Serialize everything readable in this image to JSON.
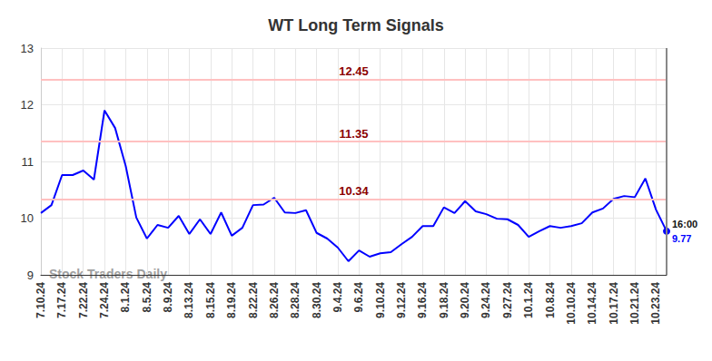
{
  "chart_data": {
    "type": "line",
    "title": "WT Long Term Signals",
    "categories": [
      "7.10.24",
      null,
      "7.17.24",
      null,
      "7.22.24",
      null,
      "7.24.24",
      null,
      "8.1.24",
      null,
      "8.5.24",
      null,
      "8.9.24",
      null,
      "8.13.24",
      null,
      "8.15.24",
      null,
      "8.19.24",
      null,
      "8.22.24",
      null,
      "8.26.24",
      null,
      "8.28.24",
      null,
      "8.30.24",
      null,
      "9.4.24",
      null,
      "9.6.24",
      null,
      "9.10.24",
      null,
      "9.12.24",
      null,
      "9.16.24",
      null,
      "9.18.24",
      null,
      "9.20.24",
      null,
      "9.24.24",
      null,
      "9.27.24",
      null,
      "10.1.24",
      null,
      "10.8.24",
      null,
      "10.10.24",
      null,
      "10.14.24",
      null,
      "10.17.24",
      null,
      "10.21.24",
      null,
      "10.23.24",
      null
    ],
    "values": [
      10.09,
      10.23,
      10.76,
      10.76,
      10.84,
      10.68,
      11.9,
      11.59,
      10.92,
      10.01,
      9.64,
      9.88,
      9.83,
      10.04,
      9.72,
      9.98,
      9.72,
      10.1,
      9.69,
      9.83,
      10.23,
      10.24,
      10.36,
      10.1,
      10.09,
      10.14,
      9.74,
      9.64,
      9.48,
      9.24,
      9.43,
      9.32,
      9.38,
      9.4,
      9.54,
      9.67,
      9.86,
      9.86,
      10.19,
      10.09,
      10.3,
      10.12,
      10.07,
      9.99,
      9.98,
      9.88,
      9.67,
      9.77,
      9.86,
      9.83,
      9.86,
      9.91,
      10.1,
      10.17,
      10.34,
      10.39,
      10.37,
      10.7,
      10.15,
      9.77
    ],
    "color": "#0000ff",
    "signal_levels": [
      12.45,
      11.35,
      10.34
    ],
    "last_point_time": "16:00",
    "watermark": "Stock Traders Daily",
    "ylim": [
      9,
      13
    ],
    "yticks": [
      9,
      10,
      11,
      12,
      13
    ],
    "grid": true
  }
}
